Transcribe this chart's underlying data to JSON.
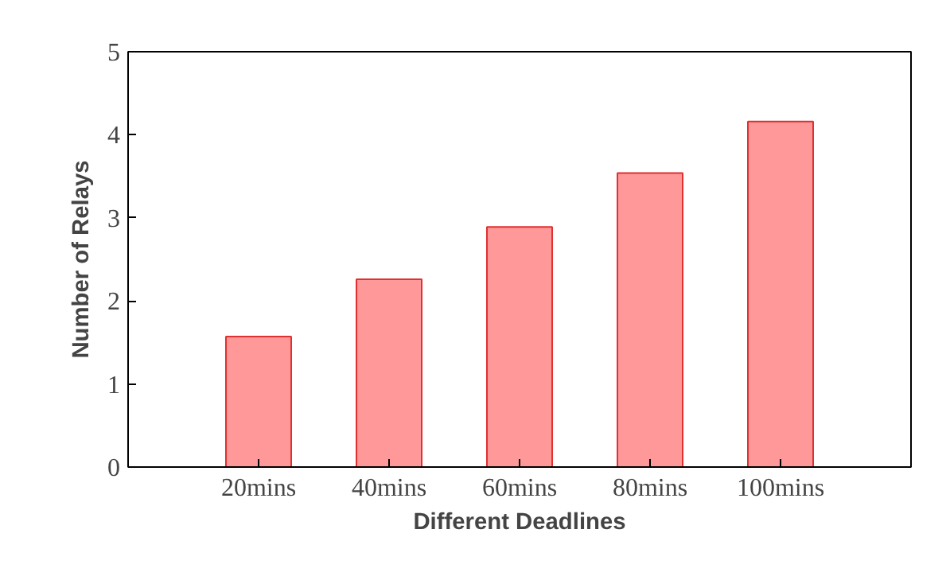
{
  "chart_data": {
    "type": "bar",
    "xlabel": "Different Deadlines",
    "ylabel": "Number of Relays",
    "categories": [
      "20mins",
      "40mins",
      "60mins",
      "80mins",
      "100mins"
    ],
    "values": [
      1.57,
      2.26,
      2.89,
      3.54,
      4.16
    ],
    "color": "#ff9999",
    "ylim": [
      0,
      5
    ],
    "yticks": [
      0,
      1,
      2,
      3,
      4,
      5
    ],
    "grid": false
  }
}
